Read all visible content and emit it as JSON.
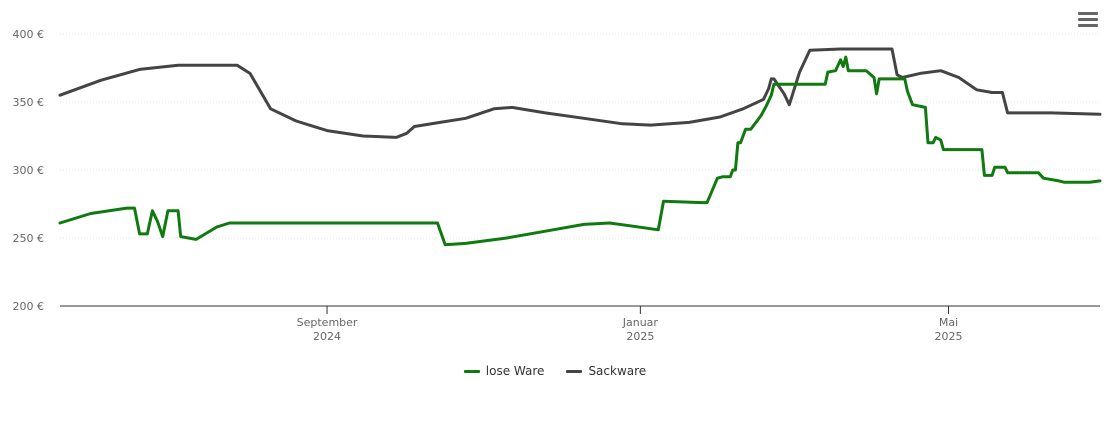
{
  "menu": {
    "icon": "hamburger-menu-icon"
  },
  "colors": {
    "lose_ware": "#0f7a0f",
    "sackware": "#444444",
    "grid": "#e6e6e6",
    "axis": "#333333"
  },
  "chart_data": {
    "type": "line",
    "title": "",
    "xlabel": "",
    "ylabel": "",
    "ylim": [
      200,
      400
    ],
    "xlim": [
      "2024-05-20",
      "2025-06-29"
    ],
    "yticks": [
      {
        "value": 200,
        "label": "200 €"
      },
      {
        "value": 250,
        "label": "250 €"
      },
      {
        "value": 300,
        "label": "300 €"
      },
      {
        "value": 350,
        "label": "350 €"
      },
      {
        "value": 400,
        "label": "400 €"
      }
    ],
    "xticks": [
      {
        "date": "2024-09-01",
        "month": "September",
        "year": "2024"
      },
      {
        "date": "2025-01-01",
        "month": "Januar",
        "year": "2025"
      },
      {
        "date": "2025-05-01",
        "month": "Mai",
        "year": "2025"
      }
    ],
    "grid": true,
    "legend_position": "bottom",
    "series": [
      {
        "name": "lose Ware",
        "color": "#0f7a0f",
        "points": [
          [
            "2024-05-20",
            261
          ],
          [
            "2024-06-01",
            268
          ],
          [
            "2024-06-15",
            272
          ],
          [
            "2024-06-18",
            272
          ],
          [
            "2024-06-20",
            253
          ],
          [
            "2024-06-23",
            253
          ],
          [
            "2024-06-25",
            270
          ],
          [
            "2024-06-27",
            262
          ],
          [
            "2024-06-29",
            251
          ],
          [
            "2024-07-01",
            270
          ],
          [
            "2024-07-05",
            270
          ],
          [
            "2024-07-06",
            251
          ],
          [
            "2024-07-12",
            249
          ],
          [
            "2024-07-20",
            258
          ],
          [
            "2024-07-25",
            261
          ],
          [
            "2024-08-01",
            261
          ],
          [
            "2024-09-10",
            261
          ],
          [
            "2024-10-01",
            261
          ],
          [
            "2024-10-14",
            261
          ],
          [
            "2024-10-17",
            245
          ],
          [
            "2024-10-25",
            246
          ],
          [
            "2024-11-10",
            250
          ],
          [
            "2024-11-25",
            255
          ],
          [
            "2024-12-10",
            260
          ],
          [
            "2024-12-20",
            261
          ],
          [
            "2024-12-28",
            259
          ],
          [
            "2025-01-08",
            256
          ],
          [
            "2025-01-10",
            277
          ],
          [
            "2025-01-25",
            276
          ],
          [
            "2025-01-27",
            276
          ],
          [
            "2025-01-31",
            294
          ],
          [
            "2025-02-02",
            295
          ],
          [
            "2025-02-05",
            295
          ],
          [
            "2025-02-06",
            300
          ],
          [
            "2025-02-07",
            300
          ],
          [
            "2025-02-08",
            320
          ],
          [
            "2025-02-09",
            320
          ],
          [
            "2025-02-11",
            330
          ],
          [
            "2025-02-13",
            330
          ],
          [
            "2025-02-17",
            340
          ],
          [
            "2025-02-19",
            347
          ],
          [
            "2025-02-21",
            355
          ],
          [
            "2025-02-22",
            363
          ],
          [
            "2025-03-01",
            363
          ],
          [
            "2025-03-09",
            363
          ],
          [
            "2025-03-14",
            363
          ],
          [
            "2025-03-15",
            372
          ],
          [
            "2025-03-18",
            373
          ],
          [
            "2025-03-20",
            381
          ],
          [
            "2025-03-21",
            376
          ],
          [
            "2025-03-22",
            383
          ],
          [
            "2025-03-23",
            373
          ],
          [
            "2025-03-25",
            373
          ],
          [
            "2025-03-30",
            373
          ],
          [
            "2025-04-02",
            368
          ],
          [
            "2025-04-03",
            356
          ],
          [
            "2025-04-04",
            367
          ],
          [
            "2025-04-08",
            367
          ],
          [
            "2025-04-14",
            367
          ],
          [
            "2025-04-15",
            358
          ],
          [
            "2025-04-17",
            348
          ],
          [
            "2025-04-22",
            346
          ],
          [
            "2025-04-23",
            320
          ],
          [
            "2025-04-25",
            320
          ],
          [
            "2025-04-26",
            324
          ],
          [
            "2025-04-28",
            322
          ],
          [
            "2025-04-29",
            315
          ],
          [
            "2025-05-01",
            315
          ],
          [
            "2025-05-10",
            315
          ],
          [
            "2025-05-14",
            315
          ],
          [
            "2025-05-15",
            296
          ],
          [
            "2025-05-18",
            296
          ],
          [
            "2025-05-19",
            302
          ],
          [
            "2025-05-23",
            302
          ],
          [
            "2025-05-24",
            298
          ],
          [
            "2025-06-05",
            298
          ],
          [
            "2025-06-07",
            294
          ],
          [
            "2025-06-13",
            292
          ],
          [
            "2025-06-15",
            291
          ],
          [
            "2025-06-25",
            291
          ],
          [
            "2025-06-29",
            292
          ]
        ]
      },
      {
        "name": "Sackware",
        "color": "#444444",
        "points": [
          [
            "2024-05-20",
            355
          ],
          [
            "2024-06-05",
            366
          ],
          [
            "2024-06-20",
            374
          ],
          [
            "2024-07-05",
            377
          ],
          [
            "2024-07-15",
            377
          ],
          [
            "2024-07-28",
            377
          ],
          [
            "2024-08-02",
            371
          ],
          [
            "2024-08-10",
            345
          ],
          [
            "2024-08-20",
            336
          ],
          [
            "2024-09-01",
            329
          ],
          [
            "2024-09-15",
            325
          ],
          [
            "2024-09-28",
            324
          ],
          [
            "2024-10-02",
            327
          ],
          [
            "2024-10-05",
            332
          ],
          [
            "2024-10-15",
            335
          ],
          [
            "2024-10-25",
            338
          ],
          [
            "2024-11-05",
            345
          ],
          [
            "2024-11-12",
            346
          ],
          [
            "2024-11-25",
            342
          ],
          [
            "2024-12-10",
            338
          ],
          [
            "2024-12-25",
            334
          ],
          [
            "2025-01-05",
            333
          ],
          [
            "2025-01-20",
            335
          ],
          [
            "2025-02-01",
            339
          ],
          [
            "2025-02-10",
            345
          ],
          [
            "2025-02-18",
            352
          ],
          [
            "2025-02-20",
            360
          ],
          [
            "2025-02-21",
            367
          ],
          [
            "2025-02-22",
            367
          ],
          [
            "2025-02-26",
            356
          ],
          [
            "2025-02-28",
            348
          ],
          [
            "2025-03-04",
            372
          ],
          [
            "2025-03-08",
            388
          ],
          [
            "2025-03-20",
            389
          ],
          [
            "2025-04-01",
            389
          ],
          [
            "2025-04-09",
            389
          ],
          [
            "2025-04-11",
            370
          ],
          [
            "2025-04-13",
            368
          ],
          [
            "2025-04-20",
            371
          ],
          [
            "2025-04-28",
            373
          ],
          [
            "2025-05-05",
            368
          ],
          [
            "2025-05-12",
            359
          ],
          [
            "2025-05-18",
            357
          ],
          [
            "2025-05-22",
            357
          ],
          [
            "2025-05-24",
            342
          ],
          [
            "2025-06-10",
            342
          ],
          [
            "2025-06-29",
            341
          ]
        ]
      }
    ]
  }
}
